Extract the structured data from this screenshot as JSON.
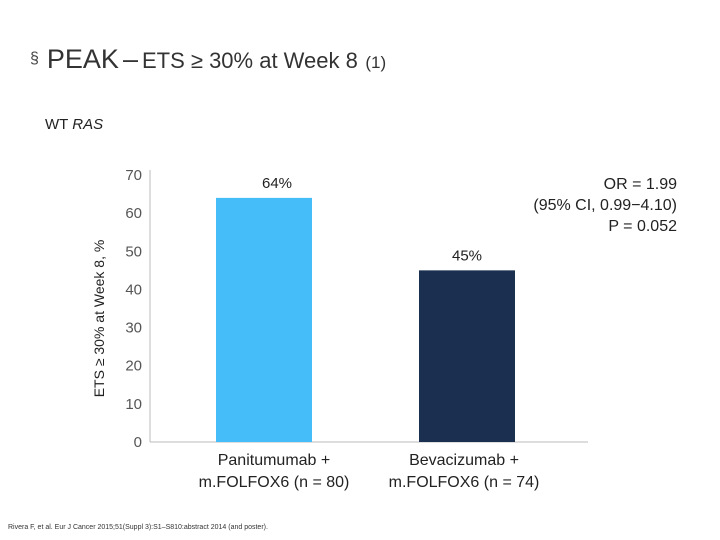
{
  "header": {
    "bullet": "§",
    "study": "PEAK",
    "dash": "–",
    "endpoint": "ETS ≥ 30% at Week 8",
    "reference": "(1)"
  },
  "subset": {
    "prefix": "WT",
    "gene": "RAS"
  },
  "chart_data": {
    "type": "bar",
    "title": "",
    "ylabel": "ETS ≥ 30% at Week 8, %",
    "xlabel": "",
    "ylim": [
      0,
      70
    ],
    "yticks": [
      0,
      10,
      20,
      30,
      40,
      50,
      60,
      70
    ],
    "grid": false,
    "categories": [
      [
        "Panitumumab +",
        "m.FOLFOX6 (n = 80)"
      ],
      [
        "Bevacizumab +",
        "m.FOLFOX6 (n = 74)"
      ]
    ],
    "values": [
      64,
      45
    ],
    "value_labels": [
      "64%",
      "45%"
    ],
    "colors": [
      "#45BDF8",
      "#1B3050"
    ],
    "annotation": [
      "OR = 1.99",
      "(95% CI, 0.99−4.10)",
      "P = 0.052"
    ]
  },
  "colors": {
    "axis": "#BBBBBB",
    "tick_text": "#555555"
  },
  "footer": {
    "citation": "Rivera F, et al. Eur J Cancer 2015;51(Suppl 3):S1–S810:abstract 2014 (and poster)."
  }
}
